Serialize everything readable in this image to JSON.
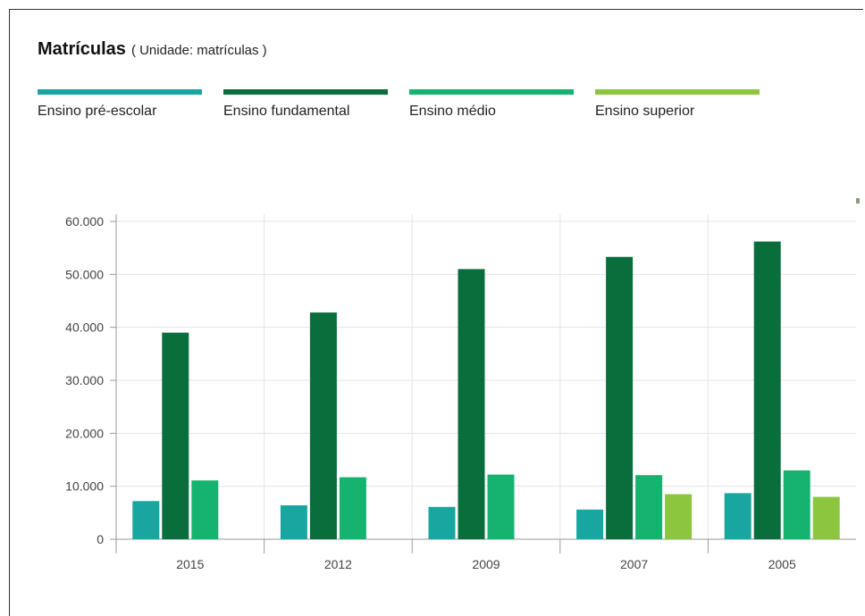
{
  "title": "Matrículas",
  "unit_label": "( Unidade: matrículas )",
  "colors": {
    "pre_escolar": "#1aa6a0",
    "fundamental": "#0a6e3c",
    "medio": "#15b36f",
    "superior": "#8cc63f",
    "grid": "#e3e3e3",
    "axis": "#9a9a9a"
  },
  "legend": [
    {
      "label": "Ensino pré-escolar",
      "color": "#1aa6a0"
    },
    {
      "label": "Ensino fundamental",
      "color": "#0a6e3c"
    },
    {
      "label": "Ensino médio",
      "color": "#15b36f"
    },
    {
      "label": "Ensino superior",
      "color": "#8cc63f"
    }
  ],
  "chart_data": {
    "type": "bar",
    "title": "Matrículas",
    "subtitle": "( Unidade: matrículas )",
    "categories": [
      "2015",
      "2012",
      "2009",
      "2007",
      "2005"
    ],
    "series": [
      {
        "name": "Ensino pré-escolar",
        "color": "#1aa6a0",
        "values": [
          7200,
          6400,
          6100,
          5600,
          8700
        ]
      },
      {
        "name": "Ensino fundamental",
        "color": "#0a6e3c",
        "values": [
          39000,
          42800,
          51000,
          53300,
          56200
        ]
      },
      {
        "name": "Ensino médio",
        "color": "#15b36f",
        "values": [
          11100,
          11700,
          12200,
          12100,
          13000
        ]
      },
      {
        "name": "Ensino superior",
        "color": "#8cc63f",
        "values": [
          null,
          null,
          null,
          8500,
          8000
        ]
      }
    ],
    "yticks": [
      "0",
      "10.000",
      "20.000",
      "30.000",
      "40.000",
      "50.000",
      "60.000"
    ],
    "ylim": [
      0,
      60000
    ],
    "grid": true,
    "legend_position": "top"
  }
}
